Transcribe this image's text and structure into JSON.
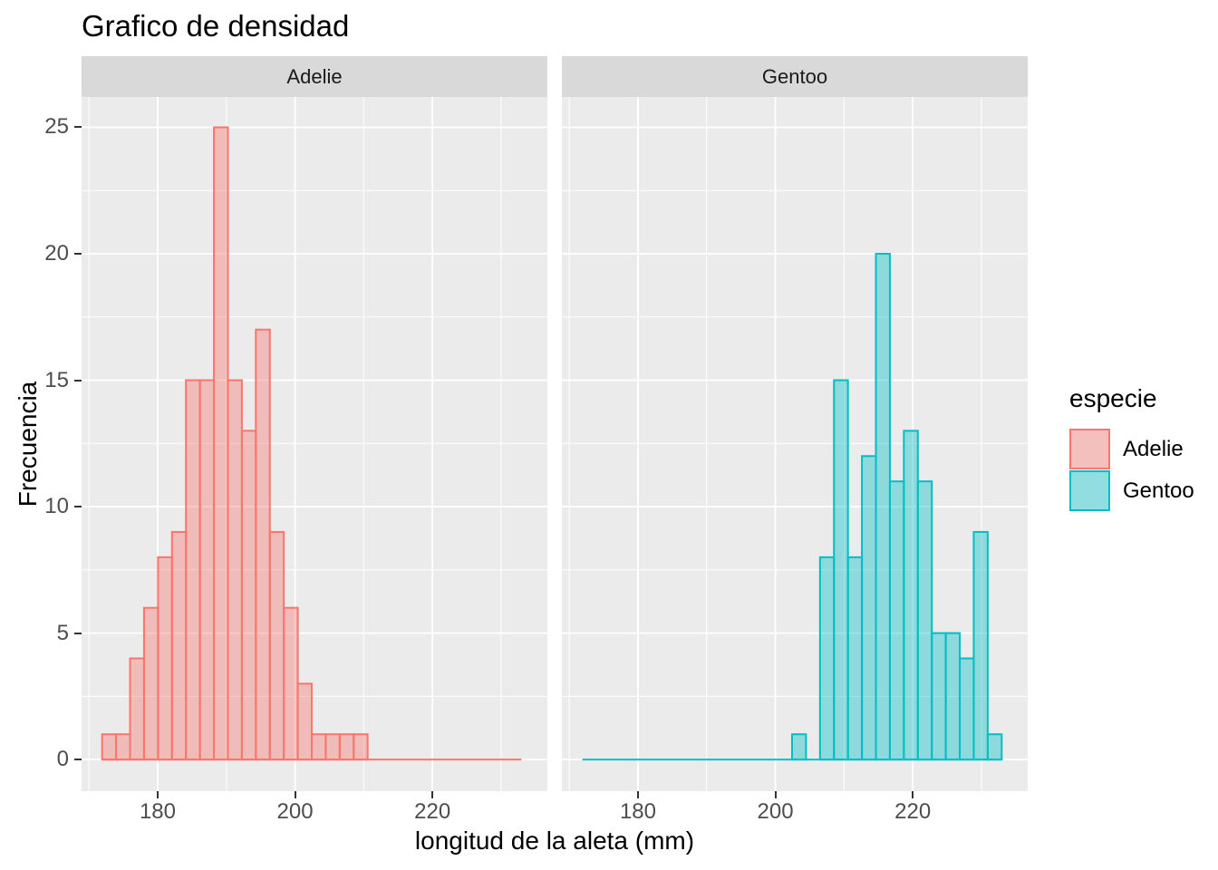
{
  "chart_data": {
    "type": "histogram",
    "title": "Grafico de densidad",
    "xlabel": "longitud de la aleta (mm)",
    "ylabel": "Frecuencia",
    "legend_title": "especie",
    "facets": [
      "Adelie",
      "Gentoo"
    ],
    "bin_start": 171.91,
    "bin_width": 2.0345,
    "series": [
      {
        "name": "Adelie",
        "stroke": "#F8766D",
        "fill": "rgba(248,118,109,0.4)",
        "counts": [
          1,
          1,
          4,
          6,
          8,
          9,
          15,
          15,
          25,
          15,
          13,
          17,
          9,
          6,
          3,
          1,
          1,
          1,
          1,
          0,
          0,
          0,
          0,
          0,
          0,
          0,
          0,
          0,
          0,
          0
        ]
      },
      {
        "name": "Gentoo",
        "stroke": "#00BFC4",
        "fill": "rgba(0,191,196,0.4)",
        "counts": [
          0,
          0,
          0,
          0,
          0,
          0,
          0,
          0,
          0,
          0,
          0,
          0,
          0,
          0,
          0,
          1,
          0,
          8,
          15,
          8,
          12,
          20,
          11,
          13,
          11,
          5,
          5,
          4,
          9,
          1
        ]
      }
    ],
    "x_axis": {
      "ticks": [
        180,
        200,
        220
      ],
      "minor_ticks": [
        170,
        190,
        210,
        230
      ],
      "range": [
        168.92,
        236.73
      ]
    },
    "y_axis": {
      "ticks": [
        0,
        5,
        10,
        15,
        20,
        25
      ],
      "minor_ticks": [
        2.5,
        7.5,
        12.5,
        17.5,
        22.5
      ],
      "range": [
        -1.25,
        26.2
      ]
    },
    "style": {
      "panel_bg": "#EBEBEB",
      "strip_bg": "#D9D9D9",
      "grid_color": "#FFFFFF",
      "tick_label_color": "#4D4D4D",
      "tick_mark_color": "#333333",
      "strip_text_color": "#1A1A1A",
      "legend_key_bg": "#F2F2F2"
    },
    "grid": true,
    "legend_position": "right"
  }
}
